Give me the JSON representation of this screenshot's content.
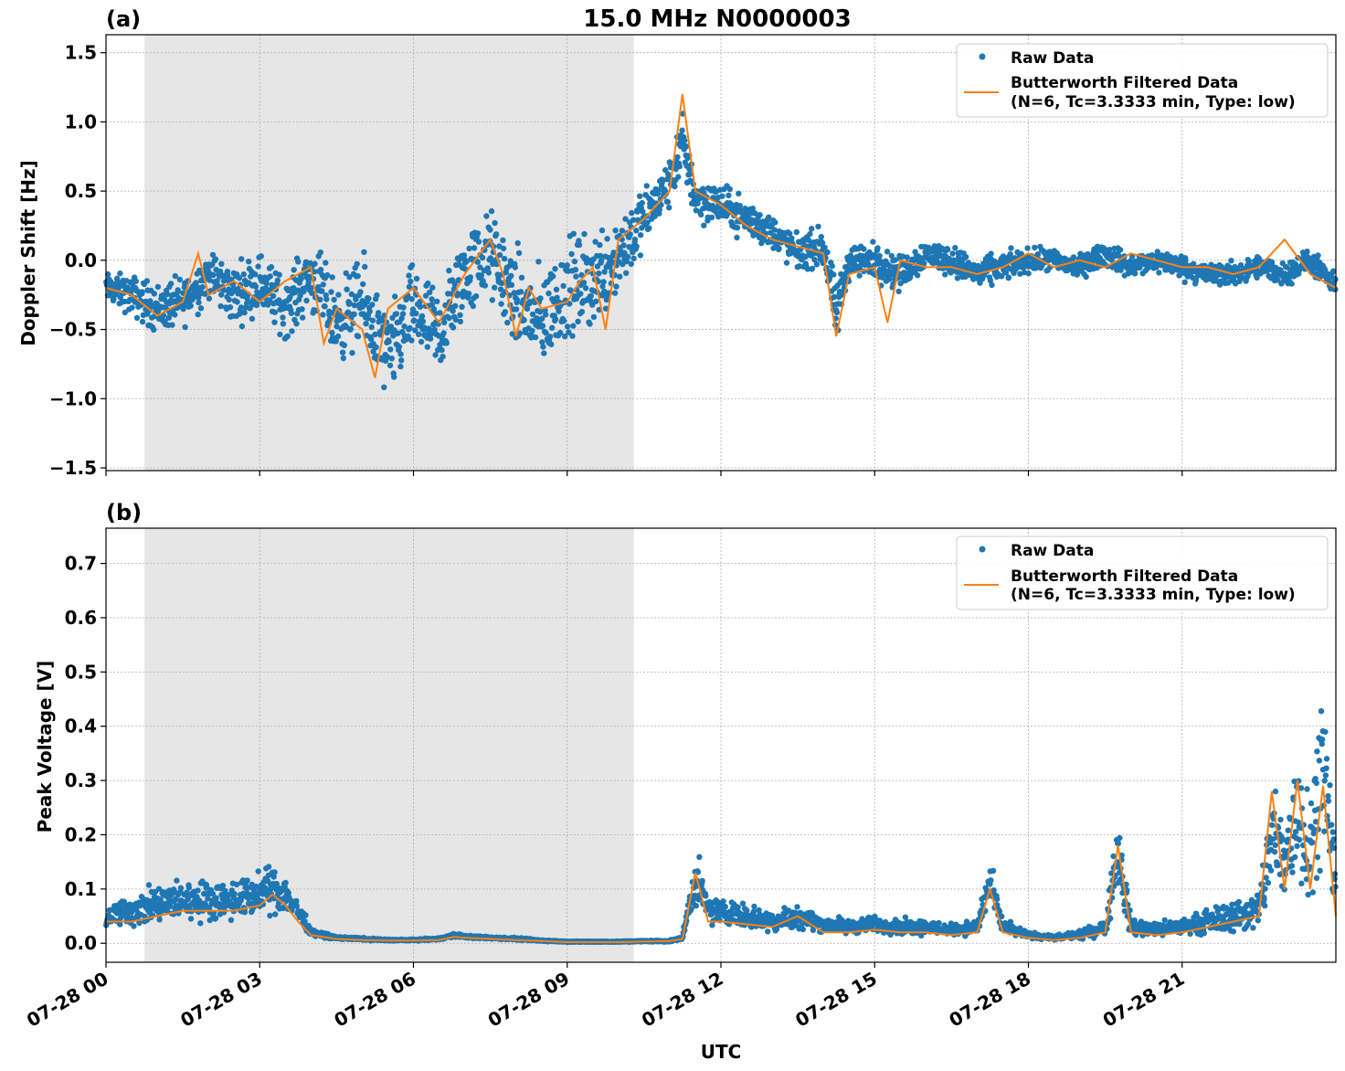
{
  "figure": {
    "title": "15.0 MHz N0000003",
    "xlabel": "UTC"
  },
  "colors": {
    "raw": "#1f77b4",
    "filtered": "#ff7f0e",
    "shade": "#e6e6e6",
    "grid": "#b0b0b0"
  },
  "chart_data": [
    {
      "panel": "(a)",
      "type": "scatter",
      "title": "15.0 MHz N0000003",
      "ylabel": "Doppler Shift [Hz]",
      "xlabel": "",
      "x_unit": "hours UTC on 07-28",
      "xlim": [
        0,
        24
      ],
      "ylim": [
        -1.52,
        1.63
      ],
      "yticks": [
        -1.5,
        -1.0,
        -0.5,
        0.0,
        0.5,
        1.0,
        1.5
      ],
      "ytick_labels": [
        "−1.5",
        "−1.0",
        "−0.5",
        "0.0",
        "0.5",
        "1.0",
        "1.5"
      ],
      "xticks": [
        0,
        3,
        6,
        9,
        12,
        15,
        18,
        21
      ],
      "xtick_labels": [
        "07-28 00",
        "07-28 03",
        "07-28 06",
        "07-28 09",
        "07-28 12",
        "07-28 15",
        "07-28 18",
        "07-28 21"
      ],
      "grid": true,
      "legend_position": "top-right",
      "shaded_region": [
        0.75,
        10.3
      ],
      "series": [
        {
          "name": "Raw Data",
          "style": "points",
          "x": [
            0,
            0.5,
            1,
            1.5,
            2,
            2.5,
            3,
            3.5,
            4,
            4.5,
            5,
            5.5,
            6,
            6.5,
            7,
            7.5,
            8,
            8.5,
            9,
            9.5,
            10,
            10.5,
            11,
            11.25,
            11.5,
            12,
            12.5,
            13,
            13.5,
            14,
            14.25,
            14.5,
            15,
            15.5,
            16,
            16.5,
            17,
            17.5,
            18,
            18.5,
            19,
            19.5,
            20,
            20.5,
            21,
            21.5,
            22,
            22.5,
            23,
            23.5,
            24
          ],
          "y": [
            -0.2,
            -0.25,
            -0.35,
            -0.3,
            -0.1,
            -0.25,
            -0.15,
            -0.35,
            -0.1,
            -0.45,
            -0.3,
            -0.7,
            -0.35,
            -0.55,
            -0.1,
            0.05,
            -0.3,
            -0.45,
            -0.2,
            -0.15,
            0.05,
            0.3,
            0.55,
            0.85,
            0.45,
            0.4,
            0.3,
            0.2,
            0.05,
            0.1,
            -0.4,
            0.0,
            0.0,
            -0.1,
            0.05,
            0.0,
            -0.1,
            -0.05,
            0.0,
            0.0,
            -0.05,
            0.05,
            -0.05,
            0.0,
            -0.05,
            -0.1,
            -0.1,
            -0.05,
            -0.1,
            0.0,
            -0.2
          ],
          "spread": [
            0.15,
            0.2,
            0.25,
            0.25,
            0.25,
            0.3,
            0.3,
            0.3,
            0.35,
            0.4,
            0.45,
            0.45,
            0.45,
            0.45,
            0.45,
            0.45,
            0.5,
            0.5,
            0.5,
            0.5,
            0.45,
            0.3,
            0.25,
            0.3,
            0.25,
            0.2,
            0.2,
            0.18,
            0.18,
            0.2,
            0.3,
            0.2,
            0.18,
            0.18,
            0.15,
            0.15,
            0.15,
            0.15,
            0.12,
            0.12,
            0.12,
            0.12,
            0.12,
            0.12,
            0.12,
            0.12,
            0.12,
            0.12,
            0.12,
            0.12,
            0.12
          ]
        },
        {
          "name": "Butterworth Filtered Data\n(N=6, Tc=3.3333 min, Type: low)",
          "style": "line",
          "x": [
            0,
            0.5,
            1,
            1.5,
            1.8,
            2,
            2.5,
            3,
            3.5,
            4,
            4.25,
            4.5,
            5,
            5.25,
            5.5,
            6,
            6.5,
            7,
            7.5,
            7.75,
            8,
            8.25,
            8.5,
            9,
            9.25,
            9.5,
            9.75,
            10,
            10.5,
            11,
            11.25,
            11.5,
            12,
            12.5,
            13,
            13.5,
            14,
            14.25,
            14.5,
            15,
            15.25,
            15.5,
            16,
            16.5,
            17,
            17.5,
            18,
            18.5,
            19,
            19.5,
            20,
            20.5,
            21,
            21.5,
            22,
            22.5,
            23,
            23.5,
            24
          ],
          "y": [
            -0.2,
            -0.25,
            -0.4,
            -0.3,
            0.05,
            -0.25,
            -0.15,
            -0.3,
            -0.15,
            -0.05,
            -0.6,
            -0.35,
            -0.5,
            -0.85,
            -0.35,
            -0.2,
            -0.45,
            -0.1,
            0.15,
            -0.1,
            -0.55,
            -0.2,
            -0.35,
            -0.3,
            -0.15,
            -0.05,
            -0.5,
            0.15,
            0.3,
            0.5,
            1.2,
            0.5,
            0.4,
            0.25,
            0.15,
            0.1,
            0.05,
            -0.55,
            -0.1,
            -0.05,
            -0.45,
            0.0,
            -0.05,
            -0.05,
            -0.1,
            -0.05,
            0.05,
            -0.05,
            0.0,
            -0.05,
            0.05,
            0.0,
            -0.05,
            -0.05,
            -0.1,
            -0.05,
            0.15,
            -0.1,
            -0.2
          ]
        }
      ]
    },
    {
      "panel": "(b)",
      "type": "scatter",
      "title": "",
      "ylabel": "Peak Voltage [V]",
      "xlabel": "UTC",
      "x_unit": "hours UTC on 07-28",
      "xlim": [
        0,
        24
      ],
      "ylim": [
        -0.035,
        0.765
      ],
      "yticks": [
        0.0,
        0.1,
        0.2,
        0.3,
        0.4,
        0.5,
        0.6,
        0.7
      ],
      "ytick_labels": [
        "0.0",
        "0.1",
        "0.2",
        "0.3",
        "0.4",
        "0.5",
        "0.6",
        "0.7"
      ],
      "xticks": [
        0,
        3,
        6,
        9,
        12,
        15,
        18,
        21
      ],
      "xtick_labels": [
        "07-28 00",
        "07-28 03",
        "07-28 06",
        "07-28 09",
        "07-28 12",
        "07-28 15",
        "07-28 18",
        "07-28 21"
      ],
      "grid": true,
      "legend_position": "top-right",
      "shaded_region": [
        0.75,
        10.3
      ],
      "series": [
        {
          "name": "Raw Data",
          "style": "points",
          "x": [
            0,
            0.5,
            1,
            1.5,
            2,
            2.5,
            3,
            3.25,
            3.5,
            3.75,
            4,
            4.5,
            5,
            5.5,
            6,
            6.5,
            6.8,
            7,
            7.5,
            8,
            8.5,
            9,
            9.5,
            10,
            10.5,
            11,
            11.25,
            11.5,
            11.75,
            12,
            12.5,
            13,
            13.5,
            14,
            14.5,
            15,
            15.5,
            16,
            16.5,
            17,
            17.25,
            17.5,
            18,
            18.5,
            19,
            19.5,
            19.75,
            20,
            20.5,
            21,
            21.5,
            22,
            22.5,
            22.75,
            23,
            23.25,
            23.5,
            23.75,
            24
          ],
          "y": [
            0.05,
            0.06,
            0.07,
            0.08,
            0.08,
            0.08,
            0.09,
            0.1,
            0.09,
            0.06,
            0.02,
            0.01,
            0.008,
            0.006,
            0.006,
            0.008,
            0.015,
            0.012,
            0.01,
            0.008,
            0.005,
            0.003,
            0.003,
            0.003,
            0.004,
            0.004,
            0.01,
            0.12,
            0.06,
            0.06,
            0.05,
            0.04,
            0.05,
            0.035,
            0.03,
            0.035,
            0.03,
            0.03,
            0.025,
            0.03,
            0.11,
            0.03,
            0.015,
            0.01,
            0.015,
            0.03,
            0.17,
            0.03,
            0.025,
            0.03,
            0.04,
            0.05,
            0.06,
            0.2,
            0.15,
            0.25,
            0.18,
            0.35,
            0.1
          ],
          "spread": [
            0.03,
            0.04,
            0.05,
            0.05,
            0.05,
            0.05,
            0.05,
            0.06,
            0.05,
            0.03,
            0.008,
            0.004,
            0.003,
            0.002,
            0.002,
            0.003,
            0.005,
            0.004,
            0.003,
            0.003,
            0.002,
            0.001,
            0.001,
            0.001,
            0.002,
            0.002,
            0.004,
            0.07,
            0.04,
            0.03,
            0.03,
            0.03,
            0.03,
            0.02,
            0.02,
            0.02,
            0.02,
            0.02,
            0.015,
            0.02,
            0.06,
            0.02,
            0.008,
            0.006,
            0.01,
            0.02,
            0.12,
            0.02,
            0.02,
            0.02,
            0.03,
            0.04,
            0.05,
            0.15,
            0.12,
            0.2,
            0.15,
            0.2,
            0.08
          ]
        },
        {
          "name": "Butterworth Filtered Data\n(N=6, Tc=3.3333 min, Type: low)",
          "style": "line",
          "x": [
            0,
            0.5,
            1,
            1.5,
            2,
            2.5,
            3,
            3.25,
            3.5,
            3.75,
            4,
            4.5,
            5,
            5.5,
            6,
            6.5,
            6.8,
            7,
            7.5,
            8,
            8.5,
            9,
            9.5,
            10,
            10.5,
            11,
            11.25,
            11.5,
            11.75,
            12,
            12.5,
            13,
            13.5,
            14,
            14.5,
            15,
            15.5,
            16,
            16.5,
            17,
            17.25,
            17.5,
            18,
            18.5,
            19,
            19.5,
            19.75,
            20,
            20.5,
            21,
            21.5,
            22,
            22.5,
            22.75,
            23,
            23.25,
            23.5,
            23.75,
            24
          ],
          "y": [
            0.04,
            0.04,
            0.05,
            0.06,
            0.06,
            0.06,
            0.07,
            0.09,
            0.07,
            0.04,
            0.015,
            0.008,
            0.006,
            0.005,
            0.005,
            0.006,
            0.012,
            0.01,
            0.008,
            0.006,
            0.004,
            0.002,
            0.002,
            0.002,
            0.003,
            0.004,
            0.008,
            0.13,
            0.04,
            0.04,
            0.035,
            0.03,
            0.05,
            0.02,
            0.02,
            0.025,
            0.02,
            0.02,
            0.015,
            0.02,
            0.1,
            0.02,
            0.01,
            0.006,
            0.01,
            0.02,
            0.18,
            0.02,
            0.015,
            0.02,
            0.03,
            0.04,
            0.05,
            0.28,
            0.1,
            0.3,
            0.1,
            0.29,
            0.05
          ]
        }
      ]
    }
  ]
}
